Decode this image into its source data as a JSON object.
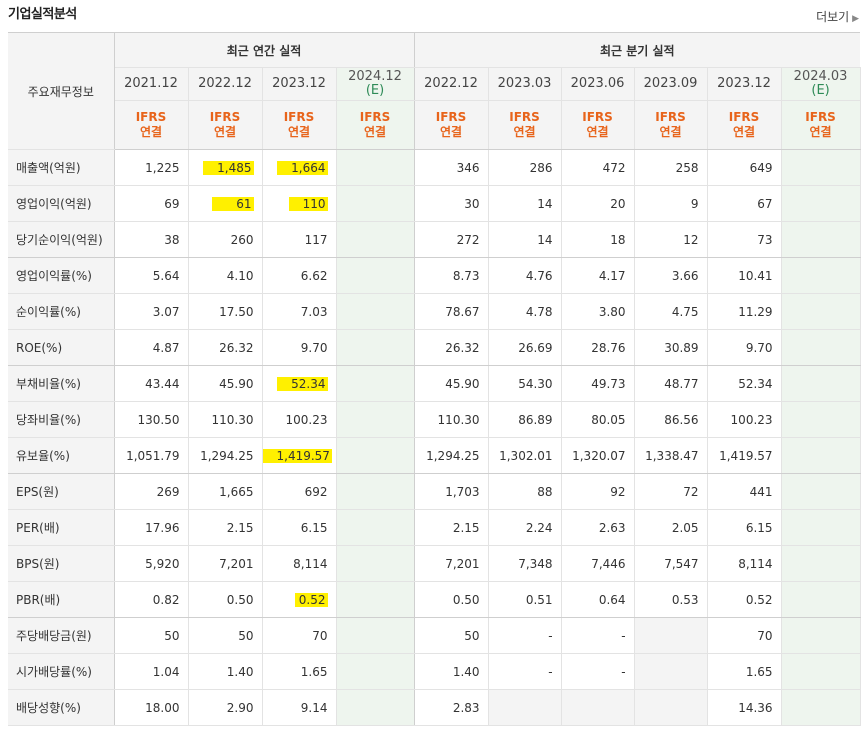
{
  "title": "기업실적분석",
  "more": "더보기",
  "header": {
    "label": "주요재무정보",
    "annual_group": "최근 연간 실적",
    "quarter_group": "최근 분기 실적",
    "periods": [
      {
        "label": "2021.12",
        "est": ""
      },
      {
        "label": "2022.12",
        "est": ""
      },
      {
        "label": "2023.12",
        "est": ""
      },
      {
        "label": "2024.12",
        "est": "(E)"
      },
      {
        "label": "2022.12",
        "est": ""
      },
      {
        "label": "2023.03",
        "est": ""
      },
      {
        "label": "2023.06",
        "est": ""
      },
      {
        "label": "2023.09",
        "est": ""
      },
      {
        "label": "2023.12",
        "est": ""
      },
      {
        "label": "2024.03",
        "est": "(E)"
      }
    ],
    "ifrs": "IFRS",
    "consol": "연결"
  },
  "rows": [
    {
      "label": "매출액(억원)",
      "values": [
        "1,225",
        "1,485",
        "1,664",
        "",
        "346",
        "286",
        "472",
        "258",
        "649",
        ""
      ]
    },
    {
      "label": "영업이익(억원)",
      "values": [
        "69",
        "61",
        "110",
        "",
        "30",
        "14",
        "20",
        "9",
        "67",
        ""
      ]
    },
    {
      "label": "당기순이익(억원)",
      "values": [
        "38",
        "260",
        "117",
        "",
        "272",
        "14",
        "18",
        "12",
        "73",
        ""
      ]
    },
    {
      "label": "영업이익률(%)",
      "values": [
        "5.64",
        "4.10",
        "6.62",
        "",
        "8.73",
        "4.76",
        "4.17",
        "3.66",
        "10.41",
        ""
      ]
    },
    {
      "label": "순이익률(%)",
      "values": [
        "3.07",
        "17.50",
        "7.03",
        "",
        "78.67",
        "4.78",
        "3.80",
        "4.75",
        "11.29",
        ""
      ]
    },
    {
      "label": "ROE(%)",
      "values": [
        "4.87",
        "26.32",
        "9.70",
        "",
        "26.32",
        "26.69",
        "28.76",
        "30.89",
        "9.70",
        ""
      ]
    },
    {
      "label": "부채비율(%)",
      "values": [
        "43.44",
        "45.90",
        "52.34",
        "",
        "45.90",
        "54.30",
        "49.73",
        "48.77",
        "52.34",
        ""
      ]
    },
    {
      "label": "당좌비율(%)",
      "values": [
        "130.50",
        "110.30",
        "100.23",
        "",
        "110.30",
        "86.89",
        "80.05",
        "86.56",
        "100.23",
        ""
      ]
    },
    {
      "label": "유보율(%)",
      "values": [
        "1,051.79",
        "1,294.25",
        "1,419.57",
        "",
        "1,294.25",
        "1,302.01",
        "1,320.07",
        "1,338.47",
        "1,419.57",
        ""
      ]
    },
    {
      "label": "EPS(원)",
      "values": [
        "269",
        "1,665",
        "692",
        "",
        "1,703",
        "88",
        "92",
        "72",
        "441",
        ""
      ]
    },
    {
      "label": "PER(배)",
      "values": [
        "17.96",
        "2.15",
        "6.15",
        "",
        "2.15",
        "2.24",
        "2.63",
        "2.05",
        "6.15",
        ""
      ]
    },
    {
      "label": "BPS(원)",
      "values": [
        "5,920",
        "7,201",
        "8,114",
        "",
        "7,201",
        "7,348",
        "7,446",
        "7,547",
        "8,114",
        ""
      ]
    },
    {
      "label": "PBR(배)",
      "values": [
        "0.82",
        "0.50",
        "0.52",
        "",
        "0.50",
        "0.51",
        "0.64",
        "0.53",
        "0.52",
        ""
      ]
    },
    {
      "label": "주당배당금(원)",
      "values": [
        "50",
        "50",
        "70",
        "",
        "50",
        "-",
        "-",
        "",
        "70",
        ""
      ]
    },
    {
      "label": "시가배당률(%)",
      "values": [
        "1.04",
        "1.40",
        "1.65",
        "",
        "1.40",
        "-",
        "-",
        "",
        "1.65",
        ""
      ]
    },
    {
      "label": "배당성향(%)",
      "values": [
        "18.00",
        "2.90",
        "9.14",
        "",
        "2.83",
        "",
        "",
        "",
        "14.36",
        ""
      ]
    }
  ],
  "highlights": [
    "0-1",
    "0-2",
    "1-1",
    "1-2",
    "6-2",
    "8-2",
    "12-2"
  ],
  "highlight_color": "#fff000",
  "accent_color": "#e8641b",
  "estimate_bg": "#eef5ee"
}
